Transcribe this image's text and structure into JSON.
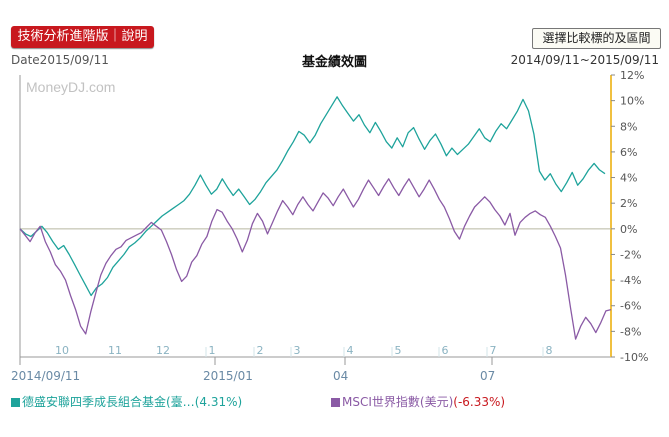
{
  "header": {
    "analysis_button": "技術分析進階版｜說明",
    "range_button": "選擇比較標的及區間",
    "date_label": "Date2015/09/11",
    "title": "基金績效圖",
    "period": "2014/09/11~2015/09/11",
    "watermark": "MoneyDJ.com"
  },
  "colors": {
    "fund": "#1ea39b",
    "index": "#8a5aa5",
    "accent": "#c8181e",
    "zero_line": "#b8b8a0",
    "axis": "#f0c040"
  },
  "chart_data": {
    "type": "line",
    "x_months_inner": [
      "10",
      "11",
      "12",
      "1",
      "2",
      "3",
      "4",
      "5",
      "6",
      "7",
      "8"
    ],
    "x_labels_bottom": [
      "2014/09/11",
      "2015/01",
      "04",
      "07"
    ],
    "ylim": [
      -10,
      12
    ],
    "y_ticks": [
      "12%",
      "10%",
      "8%",
      "6%",
      "4%",
      "2%",
      "0%",
      "-2%",
      "-4%",
      "-6%",
      "-8%",
      "-10%"
    ],
    "series": [
      {
        "name": "德盛安聯四季成長組合基金(臺…",
        "color": "#1ea39b",
        "final_return": "(4.31%)",
        "values": [
          0,
          -0.4,
          -0.6,
          -0.2,
          0.2,
          -0.3,
          -1.0,
          -1.6,
          -1.3,
          -2.0,
          -2.8,
          -3.6,
          -4.4,
          -5.2,
          -4.6,
          -4.3,
          -3.8,
          -3.0,
          -2.5,
          -2.0,
          -1.4,
          -1.1,
          -0.7,
          -0.2,
          0.2,
          0.6,
          1.0,
          1.3,
          1.6,
          1.9,
          2.2,
          2.7,
          3.4,
          4.2,
          3.4,
          2.7,
          3.1,
          3.9,
          3.2,
          2.6,
          3.1,
          2.5,
          1.9,
          2.3,
          2.9,
          3.6,
          4.1,
          4.6,
          5.3,
          6.1,
          6.8,
          7.6,
          7.3,
          6.7,
          7.3,
          8.2,
          8.9,
          9.6,
          10.3,
          9.6,
          9.0,
          8.4,
          8.9,
          8.1,
          7.5,
          8.3,
          7.6,
          6.8,
          6.3,
          7.1,
          6.4,
          7.5,
          7.9,
          7.0,
          6.2,
          6.9,
          7.4,
          6.6,
          5.7,
          6.3,
          5.8,
          6.2,
          6.6,
          7.2,
          7.8,
          7.1,
          6.8,
          7.6,
          8.2,
          7.8,
          8.5,
          9.2,
          10.1,
          9.2,
          7.4,
          4.5,
          3.8,
          4.3,
          3.5,
          2.9,
          3.6,
          4.4,
          3.4,
          3.9,
          4.6,
          5.1,
          4.6,
          4.3
        ]
      },
      {
        "name": "MSCI世界指數(美元)",
        "color": "#8a5aa5",
        "final_return": "(-6.33%)",
        "values": [
          0,
          -0.5,
          -1.0,
          -0.3,
          0.2,
          -1.0,
          -1.8,
          -2.8,
          -3.3,
          -4.0,
          -5.2,
          -6.3,
          -7.6,
          -8.2,
          -6.5,
          -5.0,
          -3.6,
          -2.7,
          -2.1,
          -1.6,
          -1.4,
          -0.9,
          -0.7,
          -0.5,
          -0.3,
          0.1,
          0.5,
          0.2,
          -0.1,
          -1.0,
          -2.0,
          -3.2,
          -4.1,
          -3.7,
          -2.6,
          -2.1,
          -1.2,
          -0.6,
          0.6,
          1.5,
          1.3,
          0.6,
          0.0,
          -0.8,
          -1.8,
          -0.9,
          0.4,
          1.2,
          0.6,
          -0.4,
          0.5,
          1.4,
          2.2,
          1.7,
          1.1,
          1.9,
          2.5,
          1.9,
          1.4,
          2.1,
          2.8,
          2.4,
          1.8,
          2.5,
          3.1,
          2.4,
          1.7,
          2.3,
          3.1,
          3.8,
          3.2,
          2.6,
          3.3,
          3.9,
          3.2,
          2.6,
          3.3,
          3.9,
          3.2,
          2.5,
          3.1,
          3.8,
          3.1,
          2.3,
          1.7,
          0.8,
          -0.2,
          -0.8,
          0.2,
          1.0,
          1.7,
          2.1,
          2.5,
          2.1,
          1.5,
          1.0,
          0.3,
          1.2,
          -0.5,
          0.5,
          0.9,
          1.2,
          1.4,
          1.1,
          0.9,
          0.2,
          -0.6,
          -1.5,
          -3.6,
          -6.2,
          -8.6,
          -7.6,
          -6.9,
          -7.4,
          -8.1,
          -7.3,
          -6.4,
          -6.3
        ]
      }
    ]
  },
  "legend": {
    "fund_label": "德盛安聯四季成長組合基金(臺…",
    "fund_value": "(4.31%)",
    "index_label": "MSCI世界指數(美元)",
    "index_value": "(-6.33%)"
  }
}
